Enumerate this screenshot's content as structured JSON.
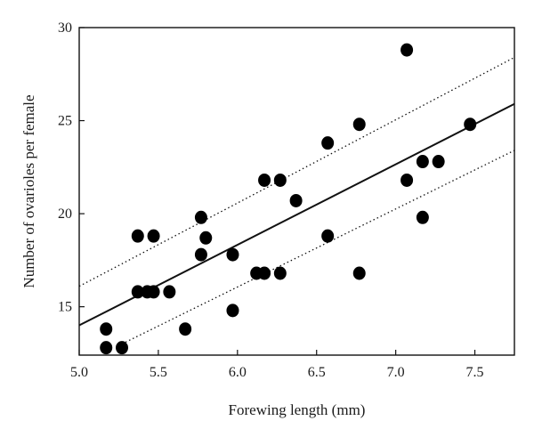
{
  "chart_data": {
    "type": "scatter",
    "xlabel": "Forewing length (mm)",
    "ylabel": "Number of ovarioles per female",
    "xlim": [
      5.0,
      7.75
    ],
    "ylim": [
      12.4,
      30
    ],
    "x_ticks": [
      5.0,
      5.5,
      6.0,
      6.5,
      7.0,
      7.5
    ],
    "y_ticks": [
      15,
      20,
      25,
      30
    ],
    "x_tick_labels": [
      "5.0",
      "5.5",
      "6.0",
      "6.5",
      "7.0",
      "7.5"
    ],
    "y_tick_labels": [
      "15",
      "20",
      "25",
      "30"
    ],
    "grid": false,
    "points": [
      {
        "x": 5.17,
        "y": 13.8
      },
      {
        "x": 5.17,
        "y": 12.8
      },
      {
        "x": 5.27,
        "y": 12.8
      },
      {
        "x": 5.37,
        "y": 18.8
      },
      {
        "x": 5.47,
        "y": 18.8
      },
      {
        "x": 5.37,
        "y": 15.8
      },
      {
        "x": 5.43,
        "y": 15.8
      },
      {
        "x": 5.47,
        "y": 15.8
      },
      {
        "x": 5.57,
        "y": 15.8
      },
      {
        "x": 5.67,
        "y": 13.8
      },
      {
        "x": 5.77,
        "y": 19.8
      },
      {
        "x": 5.8,
        "y": 18.7
      },
      {
        "x": 5.77,
        "y": 17.8
      },
      {
        "x": 5.97,
        "y": 17.8
      },
      {
        "x": 5.97,
        "y": 14.8
      },
      {
        "x": 6.12,
        "y": 16.8
      },
      {
        "x": 6.17,
        "y": 16.8
      },
      {
        "x": 6.27,
        "y": 16.8
      },
      {
        "x": 6.17,
        "y": 21.8
      },
      {
        "x": 6.27,
        "y": 21.8
      },
      {
        "x": 6.37,
        "y": 20.7
      },
      {
        "x": 6.57,
        "y": 23.8
      },
      {
        "x": 6.57,
        "y": 18.8
      },
      {
        "x": 6.77,
        "y": 24.8
      },
      {
        "x": 6.77,
        "y": 16.8
      },
      {
        "x": 7.07,
        "y": 28.8
      },
      {
        "x": 7.07,
        "y": 21.8
      },
      {
        "x": 7.17,
        "y": 22.8
      },
      {
        "x": 7.27,
        "y": 22.8
      },
      {
        "x": 7.17,
        "y": 19.8
      },
      {
        "x": 7.47,
        "y": 24.8
      }
    ],
    "regression_line": {
      "x": [
        5.0,
        7.75
      ],
      "y": [
        14.0,
        25.9
      ]
    },
    "confidence_upper": {
      "x": [
        5.0,
        7.75
      ],
      "y": [
        16.1,
        28.4
      ]
    },
    "confidence_lower": {
      "x": [
        5.27,
        7.75
      ],
      "y": [
        13.0,
        23.4
      ]
    }
  }
}
